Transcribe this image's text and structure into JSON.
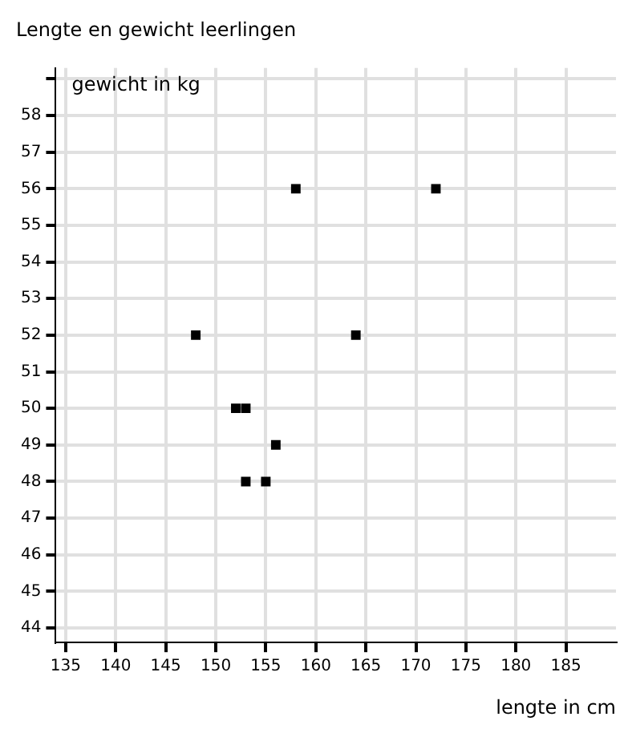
{
  "chart_data": {
    "type": "scatter",
    "title": "Lengte en gewicht leerlingen",
    "xlabel": "lengte in cm",
    "ylabel": "gewicht in kg",
    "x": [
      148,
      158,
      172,
      164,
      152,
      153,
      156,
      153,
      155
    ],
    "values": [
      52,
      56,
      56,
      52,
      50,
      50,
      49,
      48,
      48
    ],
    "color": "#000000",
    "marker": "square",
    "grid": true,
    "legend": false,
    "xlim": [
      134,
      190
    ],
    "xticks": [
      135,
      140,
      145,
      150,
      155,
      160,
      165,
      170,
      175,
      180,
      185
    ],
    "ylim": [
      43.6,
      59.3
    ],
    "yticks": [
      44,
      45,
      46,
      47,
      48,
      49,
      50,
      51,
      52,
      53,
      54,
      55,
      56,
      57,
      58,
      {
        "value": 59,
        "label": null
      }
    ]
  }
}
